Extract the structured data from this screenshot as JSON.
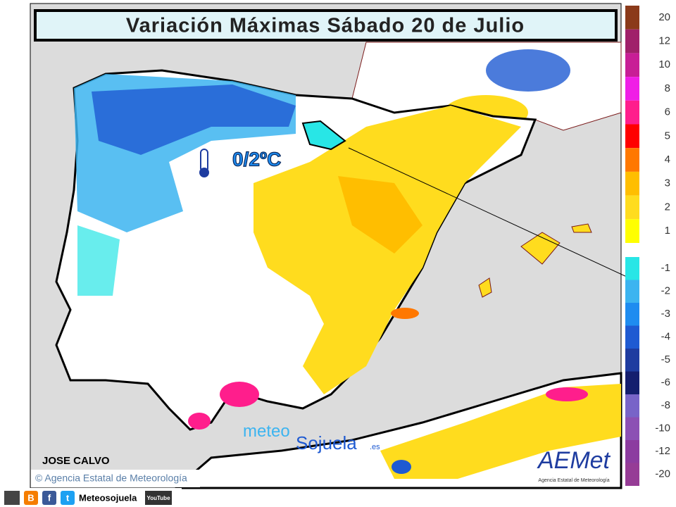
{
  "title": "Variación Máximas Sábado 20 de Julio",
  "annotation": "0/2ºC",
  "author": "JOSE CALVO",
  "credit": "© Agencia Estatal de Meteorología",
  "watermark": {
    "part1": "meteo",
    "part2": "Sojuela",
    "suffix": ".es"
  },
  "logo": {
    "text": "AEMet",
    "subtitle": "Agencia Estatal de Meteorología"
  },
  "footer": {
    "icons": [
      "B",
      "f",
      "t"
    ],
    "name": "Meteosojuela",
    "youtube": "YouTube"
  },
  "legend": {
    "warm": [
      {
        "label": "20",
        "color": "#8b3a1a"
      },
      {
        "label": "12",
        "color": "#a0206a"
      },
      {
        "label": "10",
        "color": "#c81e96"
      },
      {
        "label": "8",
        "color": "#f01ee6"
      },
      {
        "label": "6",
        "color": "#ff1e8c"
      },
      {
        "label": "5",
        "color": "#ff0000"
      },
      {
        "label": "4",
        "color": "#ff7800"
      },
      {
        "label": "3",
        "color": "#ffbe00"
      },
      {
        "label": "2",
        "color": "#ffdc1e"
      },
      {
        "label": "1",
        "color": "#ffff00"
      }
    ],
    "cold": [
      {
        "label": "-1",
        "color": "#28e6e6"
      },
      {
        "label": "-2",
        "color": "#3cb4f0"
      },
      {
        "label": "-3",
        "color": "#1e8cf0"
      },
      {
        "label": "-4",
        "color": "#1e5ad2"
      },
      {
        "label": "-5",
        "color": "#1e3ca0"
      },
      {
        "label": "-6",
        "color": "#141e6e"
      },
      {
        "label": "-8",
        "color": "#7864c8"
      },
      {
        "label": "-10",
        "color": "#8c50b4"
      },
      {
        "label": "-12",
        "color": "#8c3ca0"
      },
      {
        "label": "-20",
        "color": "#963c96"
      }
    ]
  }
}
